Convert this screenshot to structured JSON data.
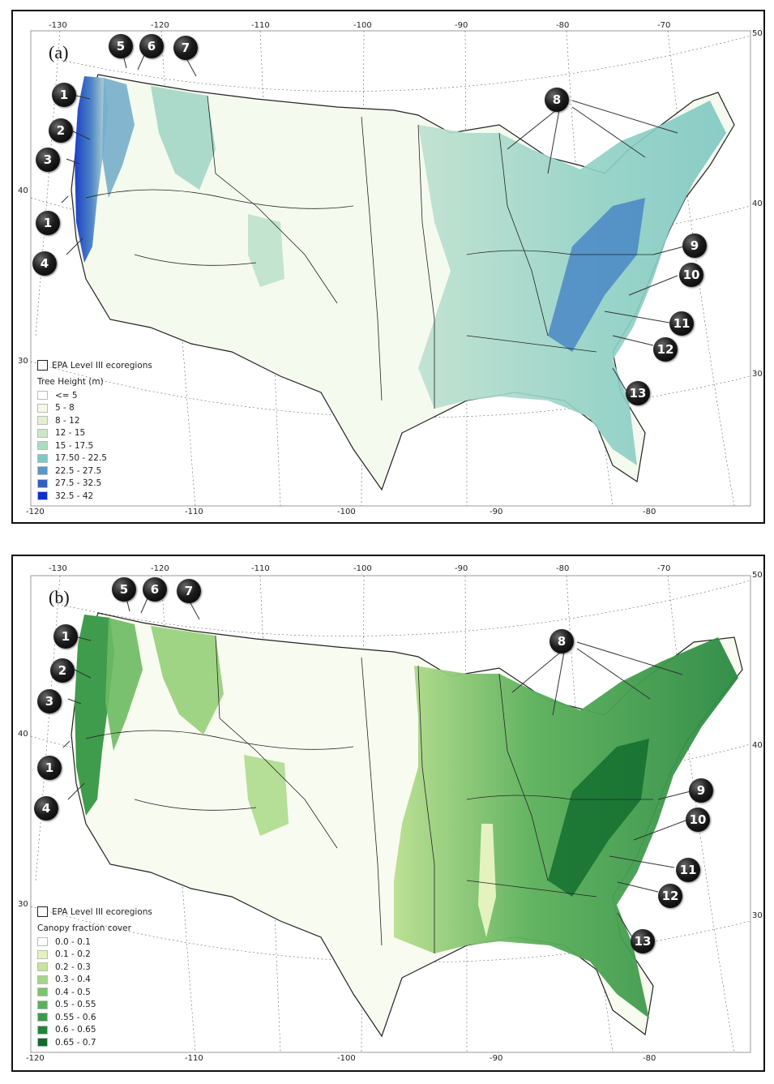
{
  "panels": [
    {
      "label": "(a)",
      "legend_outline": "EPA Level III ecoregions",
      "legend_title": "Tree Height (m)",
      "legend": [
        {
          "label": "<= 5",
          "color": "#ffffff"
        },
        {
          "label": "5 - 8",
          "color": "#f4f9e6"
        },
        {
          "label": "8 - 12",
          "color": "#e2f0cf"
        },
        {
          "label": "12 - 15",
          "color": "#cbe8c4"
        },
        {
          "label": "15 - 17.5",
          "color": "#a9dcc1"
        },
        {
          "label": "17.50 - 22.5",
          "color": "#7ec7c2"
        },
        {
          "label": "22.5 - 27.5",
          "color": "#5a96c8"
        },
        {
          "label": "27.5 - 32.5",
          "color": "#2d5fc4"
        },
        {
          "label": "32.5 - 42",
          "color": "#0a2fd6"
        }
      ]
    },
    {
      "label": "(b)",
      "legend_outline": "EPA Level III ecoregions",
      "legend_title": "Canopy fraction cover",
      "legend": [
        {
          "label": "0.0 - 0.1",
          "color": "#ffffff"
        },
        {
          "label": "0.1 - 0.2",
          "color": "#e4f2c0"
        },
        {
          "label": "0.2 - 0.3",
          "color": "#c6e59c"
        },
        {
          "label": "0.3 - 0.4",
          "color": "#a3d685"
        },
        {
          "label": "0.4 - 0.5",
          "color": "#7ec46c"
        },
        {
          "label": "0.5 - 0.55",
          "color": "#5bb05a"
        },
        {
          "label": "0.55 - 0.6",
          "color": "#3a9a4a"
        },
        {
          "label": "0.6 - 0.65",
          "color": "#23843b"
        },
        {
          "label": "0.65 - 0.7",
          "color": "#0f6a2c"
        }
      ]
    }
  ],
  "axes": {
    "top_lon": [
      "-130",
      "-120",
      "-110",
      "-100",
      "-90",
      "-80",
      "-70"
    ],
    "bottom_lon": [
      "-120",
      "-110",
      "-100",
      "-90",
      "-80"
    ],
    "left_lat": [
      "40",
      "30"
    ],
    "right_lat": [
      "50",
      "40",
      "30"
    ]
  },
  "markers": [
    "1",
    "2",
    "3",
    "1",
    "4",
    "5",
    "6",
    "7",
    "8",
    "9",
    "10",
    "11",
    "12",
    "13"
  ]
}
